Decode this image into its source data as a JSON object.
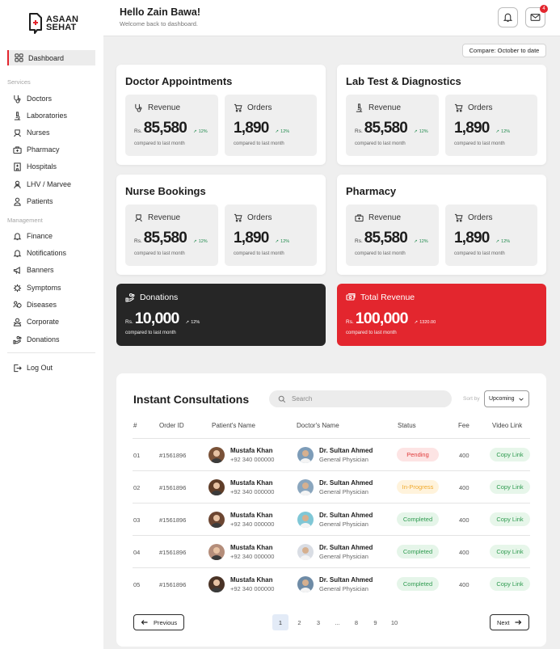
{
  "brand": {
    "line1": "ASAAN",
    "line2": "SEHAT",
    "accent": "#e3262e"
  },
  "sidebar": {
    "dashboard": "Dashboard",
    "services_label": "Services",
    "services": [
      {
        "label": "Doctors",
        "icon": "stethoscope-icon"
      },
      {
        "label": "Laboratories",
        "icon": "microscope-icon"
      },
      {
        "label": "Nurses",
        "icon": "nurse-icon"
      },
      {
        "label": "Pharmacy",
        "icon": "medical-bag-icon"
      },
      {
        "label": "Hospitals",
        "icon": "hospital-icon"
      },
      {
        "label": "LHV / Marvee",
        "icon": "users-icon"
      },
      {
        "label": "Patients",
        "icon": "user-icon"
      }
    ],
    "management_label": "Management",
    "management": [
      {
        "label": "Finance",
        "icon": "bell-icon"
      },
      {
        "label": "Notifications",
        "icon": "bell-icon"
      },
      {
        "label": "Banners",
        "icon": "megaphone-icon"
      },
      {
        "label": "Symptoms",
        "icon": "virus-icon"
      },
      {
        "label": "Diseases",
        "icon": "disease-icon"
      },
      {
        "label": "Corporate",
        "icon": "corporate-icon"
      },
      {
        "label": "Donations",
        "icon": "donation-icon"
      }
    ],
    "logout": "Log Out"
  },
  "header": {
    "greeting": "Hello Zain Bawa!",
    "subtitle": "Welcome back to dashboard.",
    "mail_badge": "4"
  },
  "compare": "Compare: October to date",
  "cards": [
    {
      "title": "Doctor Appointments",
      "revenue_label": "Revenue",
      "revenue_rs": "Rs.",
      "revenue_value": "85,580",
      "revenue_trend": "12%",
      "orders_label": "Orders",
      "orders_value": "1,890",
      "orders_trend": "12%",
      "note": "compared to last month"
    },
    {
      "title": "Lab Test & Diagnostics",
      "revenue_label": "Revenue",
      "revenue_rs": "Rs.",
      "revenue_value": "85,580",
      "revenue_trend": "12%",
      "orders_label": "Orders",
      "orders_value": "1,890",
      "orders_trend": "12%",
      "note": "compared to last month"
    },
    {
      "title": "Nurse Bookings",
      "revenue_label": "Revenue",
      "revenue_rs": "Rs.",
      "revenue_value": "85,580",
      "revenue_trend": "12%",
      "orders_label": "Orders",
      "orders_value": "1,890",
      "orders_trend": "12%",
      "note": "compared to last month"
    },
    {
      "title": "Pharmacy",
      "revenue_label": "Revenue",
      "revenue_rs": "Rs.",
      "revenue_value": "85,580",
      "revenue_trend": "12%",
      "orders_label": "Orders",
      "orders_value": "1,890",
      "orders_trend": "12%",
      "note": "compared to last month"
    }
  ],
  "donations": {
    "title": "Donations",
    "rs": "Rs.",
    "value": "10,000",
    "trend": "12%",
    "note": "compared to last month",
    "color": "#262626"
  },
  "total_revenue": {
    "title": "Total Revenue",
    "rs": "Rs.",
    "value": "100,000",
    "trend": "1320.00",
    "note": "compared to last month",
    "color": "#e3262e"
  },
  "consultations": {
    "title": "Instant Consultations",
    "search_placeholder": "Search",
    "sort_label": "Sort by",
    "sort_value": "Upcoming",
    "columns": [
      "#",
      "Order ID",
      "Patient's Name",
      "Doctor's Name",
      "Status",
      "Fee",
      "Video Link"
    ],
    "rows": [
      {
        "num": "01",
        "order": "#1561896",
        "patient": "Mustafa Khan",
        "phone": "+92 340 000000",
        "doctor": "Dr. Sultan Ahmed",
        "specialty": "General Physician",
        "status": "Pending",
        "fee": "400",
        "link": "Copy Link"
      },
      {
        "num": "02",
        "order": "#1561896",
        "patient": "Mustafa Khan",
        "phone": "+92 340 000000",
        "doctor": "Dr. Sultan Ahmed",
        "specialty": "General Physician",
        "status": "In-Progress",
        "fee": "400",
        "link": "Copy Link"
      },
      {
        "num": "03",
        "order": "#1561896",
        "patient": "Mustafa Khan",
        "phone": "+92 340 000000",
        "doctor": "Dr. Sultan Ahmed",
        "specialty": "General Physician",
        "status": "Completed",
        "fee": "400",
        "link": "Copy Link"
      },
      {
        "num": "04",
        "order": "#1561896",
        "patient": "Mustafa Khan",
        "phone": "+92 340 000000",
        "doctor": "Dr. Sultan Ahmed",
        "specialty": "General Physician",
        "status": "Completed",
        "fee": "400",
        "link": "Copy Link"
      },
      {
        "num": "05",
        "order": "#1561896",
        "patient": "Mustafa Khan",
        "phone": "+92 340 000000",
        "doctor": "Dr. Sultan Ahmed",
        "specialty": "General Physician",
        "status": "Completed",
        "fee": "400",
        "link": "Copy Link"
      }
    ],
    "status_colors": {
      "Pending": {
        "bg": "#fde4e4",
        "fg": "#e03b3b"
      },
      "In-Progress": {
        "bg": "#fff3dc",
        "fg": "#f0a92b"
      },
      "Completed": {
        "bg": "#e5f5e9",
        "fg": "#2f9b50"
      }
    },
    "pagination": {
      "previous": "Previous",
      "next": "Next",
      "pages": [
        "1",
        "2",
        "3",
        "...",
        "8",
        "9",
        "10"
      ],
      "current": "1"
    }
  }
}
